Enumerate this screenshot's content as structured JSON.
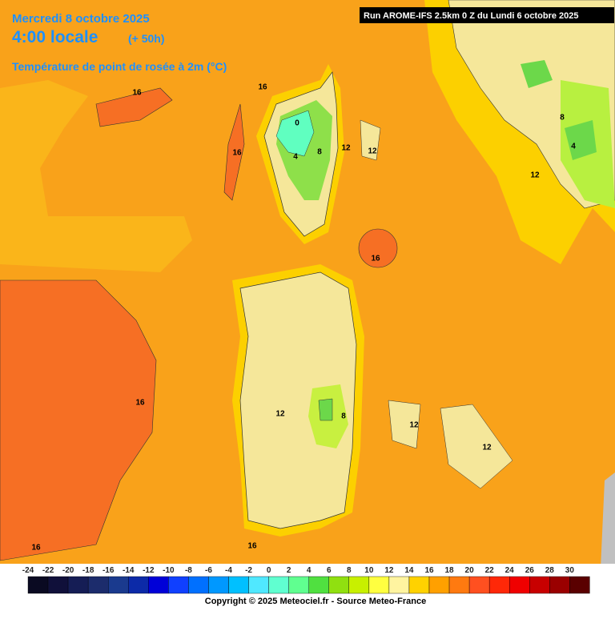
{
  "header": {
    "date": "Mercredi 8 octobre 2025",
    "time": "4:00 locale",
    "lead": "(+ 50h)",
    "variable": "Température de point de rosée à 2m (°C)",
    "run": "Run AROME-IFS 2.5km 0 Z du Lundi 6 octobre 2025"
  },
  "contour_labels": [
    "16",
    "16",
    "16",
    "0",
    "4",
    "8",
    "12",
    "12",
    "16",
    "8",
    "4",
    "12",
    "16",
    "12",
    "8",
    "12",
    "12",
    "16",
    "16"
  ],
  "legend": {
    "labels": [
      "-24",
      "-22",
      "-20",
      "-18",
      "-16",
      "-14",
      "-12",
      "-10",
      "-8",
      "-6",
      "-4",
      "-2",
      "0",
      "2",
      "4",
      "6",
      "8",
      "10",
      "12",
      "14",
      "16",
      "18",
      "20",
      "22",
      "24",
      "26",
      "28",
      "30"
    ],
    "colors": [
      "#0a0a22",
      "#10103a",
      "#151d55",
      "#1c2c6c",
      "#1a3a8e",
      "#0c2aa8",
      "#0000d8",
      "#1040ff",
      "#0070ff",
      "#0098ff",
      "#00c0ff",
      "#50e8ff",
      "#60ffd0",
      "#60ff90",
      "#50e040",
      "#90e010",
      "#c8f000",
      "#ffff40",
      "#fff4a0",
      "#ffd200",
      "#ffa000",
      "#ff7a10",
      "#ff5020",
      "#ff2808",
      "#f00000",
      "#c80000",
      "#9a0000",
      "#5a0000"
    ]
  },
  "copyright": "Copyright © 2025 Meteociel.fr - Source Meteo-France"
}
